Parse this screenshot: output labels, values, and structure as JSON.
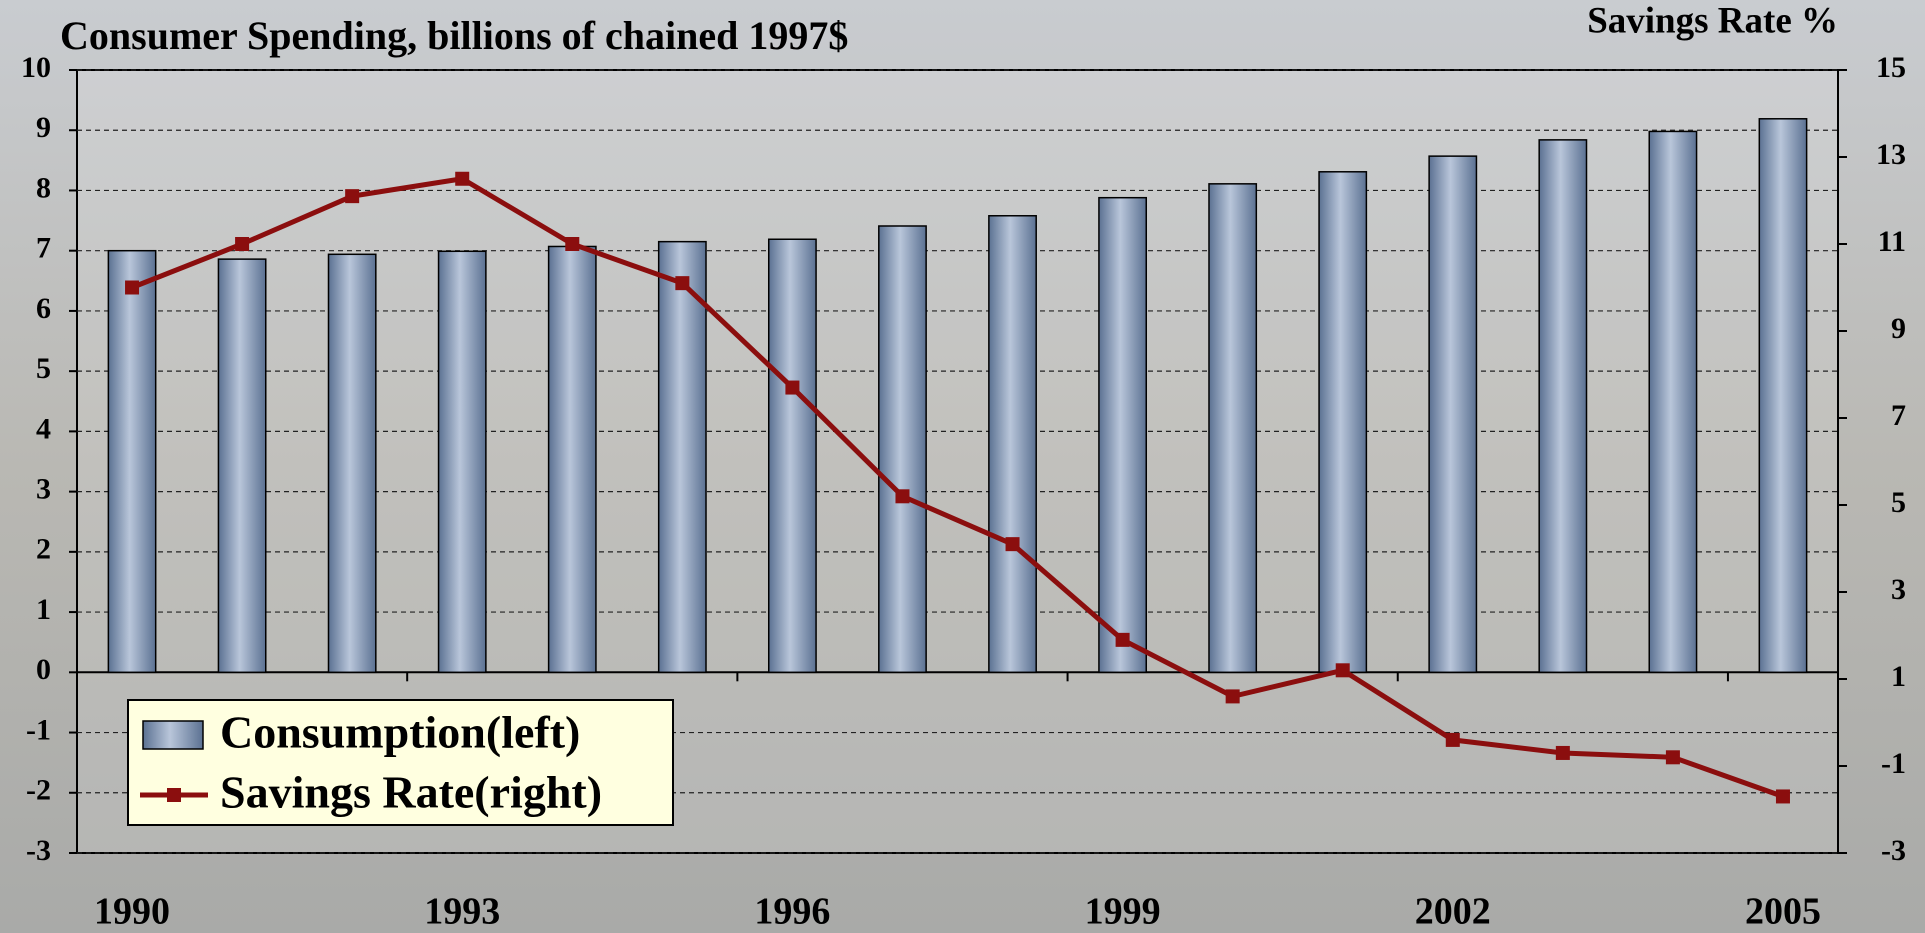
{
  "chart_data": {
    "type": "bar-line",
    "title": "Consumer Spending, billions of chained 1997$",
    "y2_label": "Savings Rate %",
    "categories": [
      "1990",
      null,
      null,
      "1993",
      null,
      null,
      "1996",
      null,
      null,
      "1999",
      null,
      null,
      "2002",
      null,
      null,
      "2005"
    ],
    "series": [
      {
        "name": "Consumption(left)",
        "type": "bar",
        "color": "#5b7192",
        "values": [
          7.0,
          6.86,
          6.94,
          6.99,
          7.07,
          7.15,
          7.19,
          7.41,
          7.58,
          7.88,
          8.11,
          8.31,
          8.57,
          8.84,
          8.98,
          9.19
        ]
      },
      {
        "name": "Savings Rate(right)",
        "type": "line",
        "axis": "y2",
        "color": "#8b0e0e",
        "values": [
          10.0,
          11.0,
          12.1,
          12.5,
          11.0,
          10.1,
          7.7,
          5.2,
          4.1,
          1.9,
          0.6,
          1.2,
          -0.4,
          -0.7,
          -0.8,
          -1.7
        ]
      }
    ],
    "ylim": [
      -3,
      10
    ],
    "yticks": [
      -3,
      -2,
      -1,
      0,
      1,
      2,
      3,
      4,
      5,
      6,
      7,
      8,
      9,
      10
    ],
    "y2lim": [
      -3,
      15
    ],
    "y2ticks": [
      -3,
      -1,
      1,
      3,
      5,
      7,
      9,
      11,
      13,
      15
    ],
    "grid": true,
    "legend": "lower left"
  }
}
